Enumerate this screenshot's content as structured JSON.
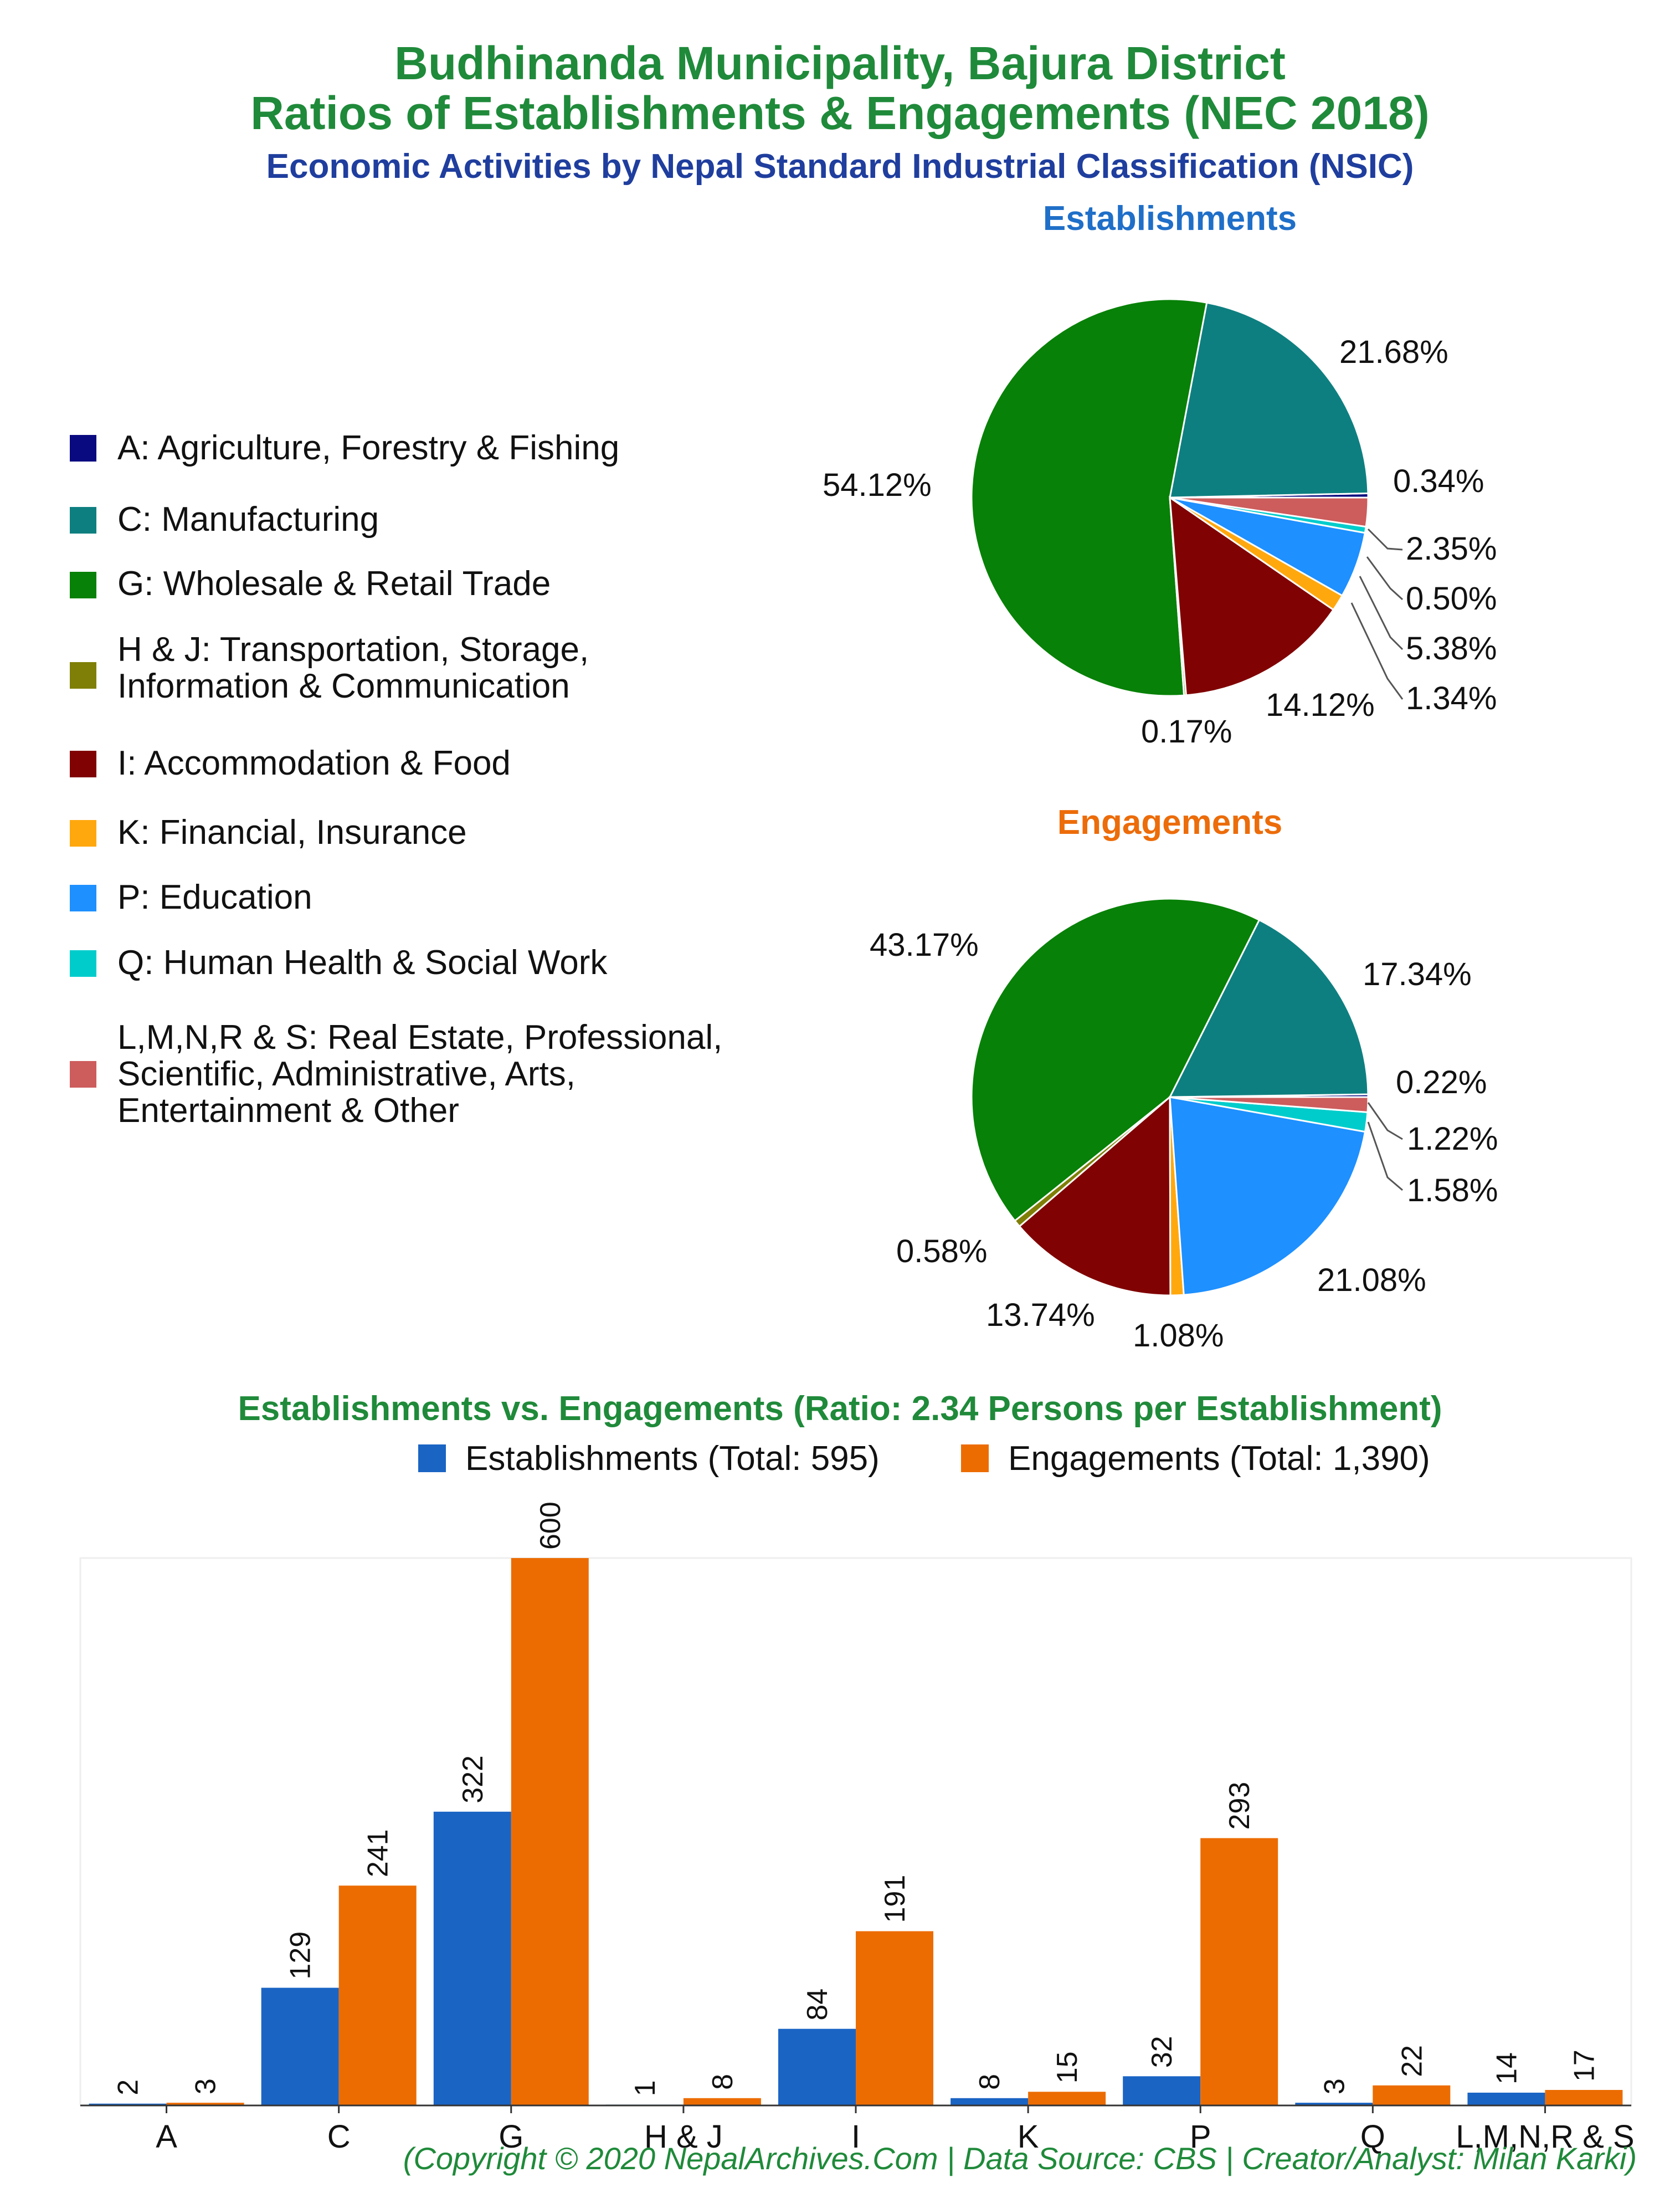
{
  "title": "Budhinanda Municipality, Bajura District",
  "title_line2": "Ratios of Establishments & Engagements (NEC 2018)",
  "subtitle": "Economic Activities by Nepal Standard Industrial Classification (NSIC)",
  "legend": [
    {
      "label": "A: Agriculture, Forestry & Fishing",
      "color": "#0a0a80"
    },
    {
      "label": "C: Manufacturing",
      "color": "#0e7f80"
    },
    {
      "label": "G: Wholesale & Retail Trade",
      "color": "#078107"
    },
    {
      "label": "H & J: Transportation, Storage,\nInformation & Communication",
      "color": "#7f7f07"
    },
    {
      "label": "I: Accommodation & Food",
      "color": "#800202"
    },
    {
      "label": "K: Financial, Insurance",
      "color": "#ffa80e"
    },
    {
      "label": "P: Education",
      "color": "#1e90ff"
    },
    {
      "label": "Q: Human Health & Social Work",
      "color": "#00cccc"
    },
    {
      "label": "L,M,N,R & S: Real Estate, Professional,\nScientific, Administrative, Arts,\nEntertainment & Other",
      "color": "#cd5c5c"
    }
  ],
  "chart_data": [
    {
      "type": "pie",
      "title": "Establishments",
      "title_color": "#1f6fc8",
      "categories": [
        "A",
        "C",
        "G",
        "H & J",
        "I",
        "K",
        "P",
        "Q",
        "L,M,N,R & S"
      ],
      "values": [
        0.34,
        21.68,
        54.12,
        0.17,
        14.12,
        1.34,
        5.38,
        0.5,
        2.35
      ],
      "labels": [
        "0.34%",
        "21.68%",
        "54.12%",
        "0.17%",
        "14.12%",
        "1.34%",
        "5.38%",
        "0.50%",
        "2.35%"
      ]
    },
    {
      "type": "pie",
      "title": "Engagements",
      "title_color": "#ec6c0a",
      "categories": [
        "A",
        "C",
        "G",
        "H & J",
        "I",
        "K",
        "P",
        "Q",
        "L,M,N,R & S"
      ],
      "values": [
        0.22,
        17.34,
        43.17,
        0.58,
        13.74,
        1.08,
        21.08,
        1.58,
        1.22
      ],
      "labels": [
        "0.22%",
        "17.34%",
        "43.17%",
        "0.58%",
        "13.74%",
        "1.08%",
        "21.08%",
        "1.58%",
        "1.22%"
      ]
    },
    {
      "type": "bar",
      "title": "Establishments vs. Engagements (Ratio: 2.34 Persons per Establishment)",
      "categories": [
        "A",
        "C",
        "G",
        "H & J",
        "I",
        "K",
        "P",
        "Q",
        "L,M,N,R & S"
      ],
      "series": [
        {
          "name": "Establishments (Total: 595)",
          "color": "#1a64c4",
          "values": [
            2,
            129,
            322,
            1,
            84,
            8,
            32,
            3,
            14
          ]
        },
        {
          "name": "Engagements (Total: 1,390)",
          "color": "#ec6c02",
          "values": [
            3,
            241,
            600,
            8,
            191,
            15,
            293,
            22,
            17
          ]
        }
      ],
      "ylim": [
        0,
        600
      ]
    }
  ],
  "footer": "(Copyright © 2020 NepalArchives.Com | Data Source: CBS | Creator/Analyst: Milan Karki)"
}
